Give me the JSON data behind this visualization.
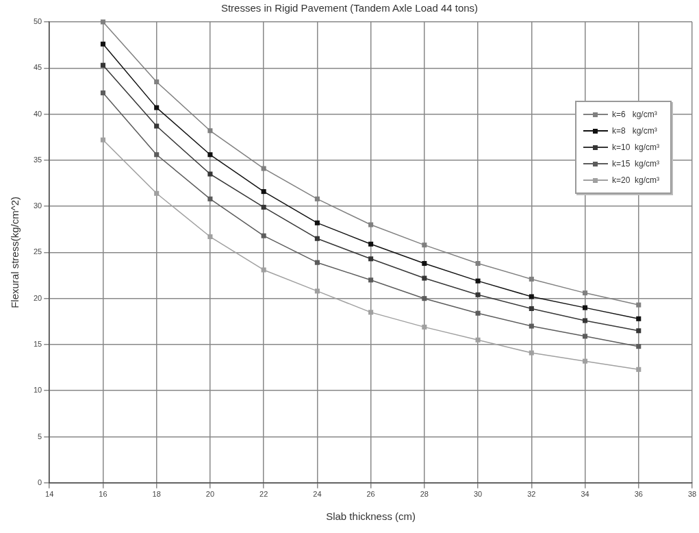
{
  "chart_data": {
    "type": "line",
    "title": "Stresses in Rigid Pavement (Tandem Axle Load 44 tons)",
    "xlabel": "Slab thickness (cm)",
    "ylabel": "Flexural stress(kg/cm^2)",
    "x": [
      16,
      18,
      20,
      22,
      24,
      26,
      28,
      30,
      32,
      34,
      36
    ],
    "series": [
      {
        "name": "k=6   kg/cm³",
        "color": "#808080",
        "values": [
          50,
          43.5,
          38.2,
          34.1,
          30.8,
          28.0,
          25.8,
          23.8,
          22.1,
          20.6,
          19.3
        ]
      },
      {
        "name": "k=8   kg/cm³",
        "color": "#111111",
        "values": [
          47.6,
          40.7,
          35.6,
          31.6,
          28.2,
          25.9,
          23.8,
          21.9,
          20.2,
          19.0,
          17.8
        ]
      },
      {
        "name": "k=10  kg/cm³",
        "color": "#363636",
        "values": [
          45.3,
          38.7,
          33.5,
          29.9,
          26.5,
          24.3,
          22.2,
          20.4,
          18.9,
          17.6,
          16.5
        ]
      },
      {
        "name": "k=15  kg/cm³",
        "color": "#5c5c5c",
        "values": [
          42.3,
          35.6,
          30.8,
          26.8,
          23.9,
          22.0,
          20.0,
          18.4,
          17.0,
          15.9,
          14.8
        ]
      },
      {
        "name": "k=20  kg/cm³",
        "color": "#a0a0a0",
        "values": [
          37.2,
          31.4,
          26.7,
          23.1,
          20.8,
          18.5,
          16.9,
          15.5,
          14.1,
          13.2,
          12.3
        ]
      }
    ],
    "xlim": [
      14,
      38
    ],
    "xticks": [
      14,
      16,
      18,
      20,
      22,
      24,
      26,
      28,
      30,
      32,
      34,
      36,
      38
    ],
    "ylim": [
      0,
      50
    ],
    "yticks": [
      0,
      5,
      10,
      15,
      20,
      25,
      30,
      35,
      40,
      45,
      50
    ],
    "grid": true,
    "legend": "top right",
    "marker": "square",
    "line_style": "solid"
  }
}
